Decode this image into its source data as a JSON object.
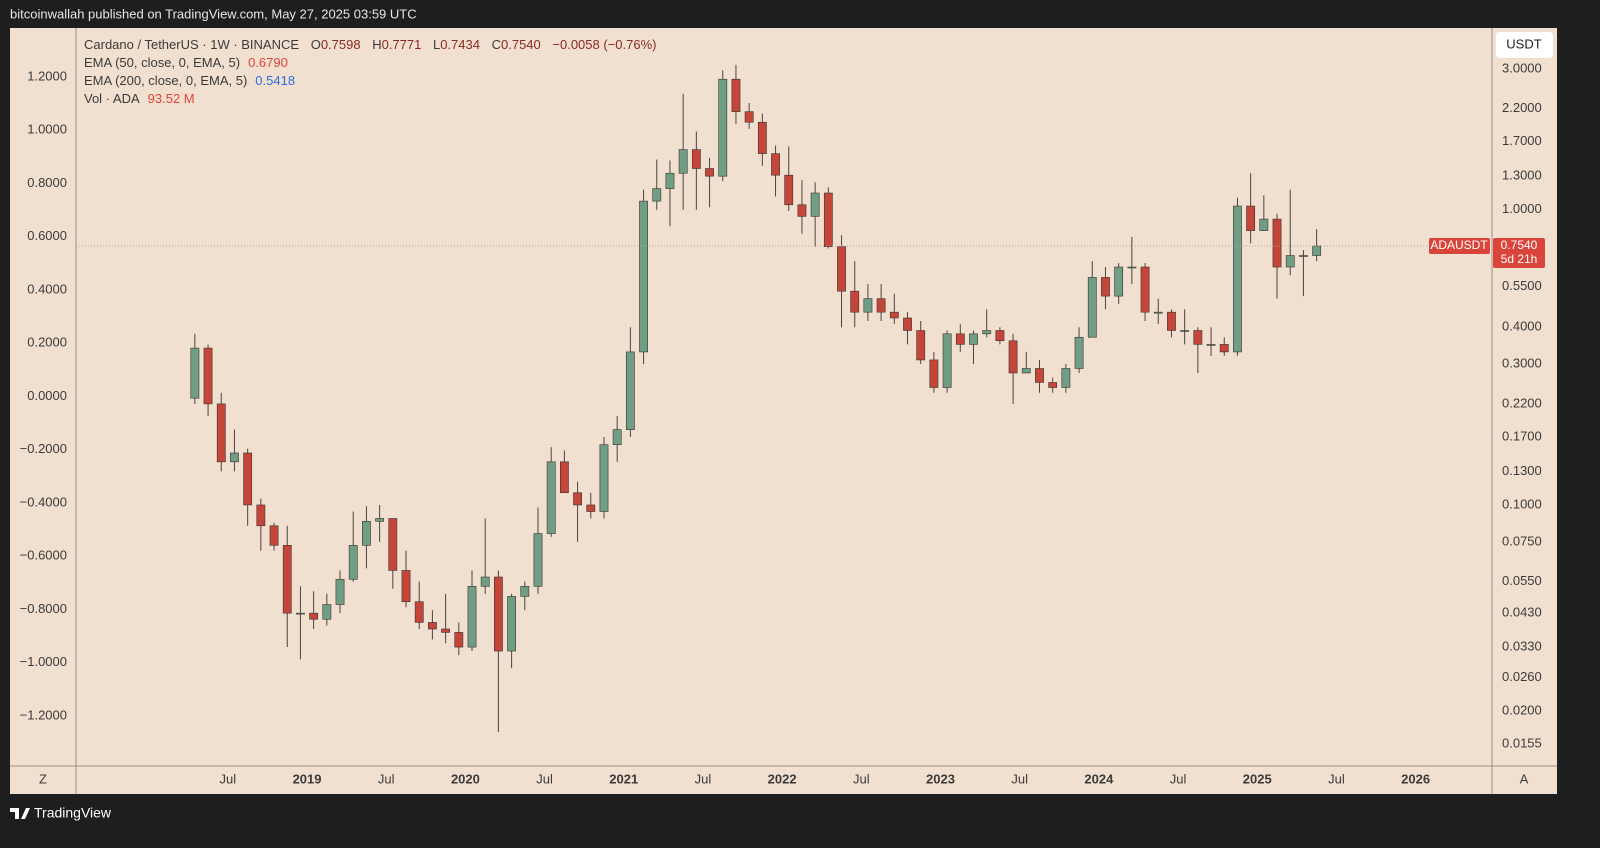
{
  "header": {
    "text": "bitcoinwallah published on TradingView.com, May 27, 2025 03:59 UTC"
  },
  "chart_data": {
    "type": "candlestick",
    "symbol": "Cardano / TetherUS · 1W · BINANCE",
    "ohlc_legend": {
      "open_label": "O",
      "open": "0.7598",
      "high_label": "H",
      "high": "0.7771",
      "low_label": "L",
      "low": "0.7434",
      "close_label": "C",
      "close": "0.7540",
      "change": "−0.0058 (−0.76%)"
    },
    "indicators": [
      {
        "name": "EMA (50, close, 0, EMA, 5)",
        "value": "0.6790",
        "color": "#e0443a"
      },
      {
        "name": "EMA (200, close, 0, EMA, 5)",
        "value": "0.5418",
        "color": "#2f6fe0"
      },
      {
        "name": "Vol · ADA",
        "value": "93.52 M",
        "color": "#e0443a"
      }
    ],
    "x": [
      "2018-04",
      "2018-05",
      "2018-06",
      "2018-07",
      "2018-08",
      "2018-09",
      "2018-10",
      "2018-11",
      "2018-12",
      "2019-01",
      "2019-02",
      "2019-03",
      "2019-04",
      "2019-05",
      "2019-06",
      "2019-07",
      "2019-08",
      "2019-09",
      "2019-10",
      "2019-11",
      "2019-12",
      "2020-01",
      "2020-02",
      "2020-03",
      "2020-04",
      "2020-05",
      "2020-06",
      "2020-07",
      "2020-08",
      "2020-09",
      "2020-10",
      "2020-11",
      "2020-12",
      "2021-01",
      "2021-02",
      "2021-03",
      "2021-04",
      "2021-05",
      "2021-06",
      "2021-07",
      "2021-08",
      "2021-09",
      "2021-10",
      "2021-11",
      "2021-12",
      "2022-01",
      "2022-02",
      "2022-03",
      "2022-04",
      "2022-05",
      "2022-06",
      "2022-07",
      "2022-08",
      "2022-09",
      "2022-10",
      "2022-11",
      "2022-12",
      "2023-01",
      "2023-02",
      "2023-03",
      "2023-04",
      "2023-05",
      "2023-06",
      "2023-07",
      "2023-08",
      "2023-09",
      "2023-10",
      "2023-11",
      "2023-12",
      "2024-01",
      "2024-02",
      "2024-03",
      "2024-04",
      "2024-05",
      "2024-06",
      "2024-07",
      "2024-08",
      "2024-09",
      "2024-10",
      "2024-11",
      "2024-12",
      "2025-01",
      "2025-02",
      "2025-03",
      "2025-04",
      "2025-05"
    ],
    "open": [
      0.23,
      0.34,
      0.22,
      0.14,
      0.15,
      0.1,
      0.085,
      0.073,
      0.043,
      0.043,
      0.041,
      0.046,
      0.056,
      0.073,
      0.088,
      0.09,
      0.06,
      0.047,
      0.04,
      0.038,
      0.037,
      0.033,
      0.053,
      0.057,
      0.032,
      0.049,
      0.053,
      0.08,
      0.14,
      0.11,
      0.1,
      0.095,
      0.16,
      0.18,
      0.33,
      1.07,
      1.18,
      1.33,
      1.6,
      1.38,
      1.3,
      2.77,
      2.15,
      1.98,
      1.55,
      1.31,
      1.04,
      0.95,
      1.14,
      0.75,
      0.53,
      0.45,
      0.5,
      0.45,
      0.43,
      0.39,
      0.31,
      0.25,
      0.38,
      0.35,
      0.38,
      0.39,
      0.36,
      0.28,
      0.29,
      0.26,
      0.25,
      0.29,
      0.37,
      0.59,
      0.51,
      0.64,
      0.64,
      0.45,
      0.45,
      0.39,
      0.39,
      0.35,
      0.35,
      0.33,
      1.03,
      0.85,
      0.93,
      0.64,
      0.7,
      0.7
    ],
    "high": [
      0.38,
      0.35,
      0.24,
      0.18,
      0.155,
      0.105,
      0.087,
      0.085,
      0.053,
      0.051,
      0.05,
      0.06,
      0.095,
      0.099,
      0.1,
      0.09,
      0.07,
      0.055,
      0.044,
      0.05,
      0.04,
      0.06,
      0.09,
      0.06,
      0.05,
      0.055,
      0.098,
      0.157,
      0.153,
      0.12,
      0.11,
      0.17,
      0.2,
      0.4,
      1.17,
      1.48,
      1.47,
      2.47,
      1.84,
      1.5,
      2.97,
      3.1,
      2.3,
      2.12,
      1.65,
      1.64,
      1.26,
      1.24,
      1.19,
      0.82,
      0.67,
      0.56,
      0.56,
      0.52,
      0.45,
      0.42,
      0.33,
      0.39,
      0.41,
      0.39,
      0.46,
      0.4,
      0.38,
      0.33,
      0.31,
      0.27,
      0.3,
      0.4,
      0.67,
      0.64,
      0.66,
      0.81,
      0.66,
      0.5,
      0.46,
      0.46,
      0.4,
      0.4,
      0.37,
      1.1,
      1.33,
      1.12,
      0.97,
      1.17,
      0.73,
      0.86
    ],
    "low": [
      0.22,
      0.2,
      0.13,
      0.13,
      0.085,
      0.07,
      0.07,
      0.033,
      0.03,
      0.038,
      0.039,
      0.043,
      0.055,
      0.061,
      0.075,
      0.052,
      0.045,
      0.038,
      0.035,
      0.034,
      0.031,
      0.032,
      0.05,
      0.017,
      0.028,
      0.044,
      0.05,
      0.078,
      0.11,
      0.075,
      0.09,
      0.09,
      0.14,
      0.17,
      0.3,
      1.0,
      0.88,
      1.0,
      1.0,
      1.02,
      1.25,
      1.95,
      1.88,
      1.41,
      1.11,
      0.99,
      0.83,
      0.75,
      0.74,
      0.4,
      0.4,
      0.42,
      0.42,
      0.41,
      0.35,
      0.3,
      0.24,
      0.24,
      0.33,
      0.3,
      0.37,
      0.35,
      0.22,
      0.28,
      0.24,
      0.24,
      0.24,
      0.28,
      0.37,
      0.46,
      0.48,
      0.56,
      0.42,
      0.41,
      0.37,
      0.35,
      0.28,
      0.32,
      0.32,
      0.32,
      0.77,
      0.86,
      0.5,
      0.6,
      0.51,
      0.67
    ],
    "close": [
      0.34,
      0.22,
      0.14,
      0.15,
      0.1,
      0.085,
      0.073,
      0.043,
      0.043,
      0.041,
      0.046,
      0.056,
      0.073,
      0.088,
      0.09,
      0.06,
      0.047,
      0.04,
      0.038,
      0.037,
      0.033,
      0.053,
      0.057,
      0.032,
      0.049,
      0.053,
      0.08,
      0.14,
      0.11,
      0.1,
      0.095,
      0.16,
      0.18,
      0.33,
      1.07,
      1.18,
      1.33,
      1.6,
      1.38,
      1.3,
      2.77,
      2.15,
      1.98,
      1.55,
      1.31,
      1.04,
      0.95,
      1.14,
      0.75,
      0.53,
      0.45,
      0.5,
      0.45,
      0.43,
      0.39,
      0.31,
      0.25,
      0.38,
      0.35,
      0.38,
      0.39,
      0.36,
      0.28,
      0.29,
      0.26,
      0.25,
      0.29,
      0.37,
      0.59,
      0.51,
      0.64,
      0.64,
      0.45,
      0.45,
      0.39,
      0.39,
      0.35,
      0.35,
      0.33,
      1.03,
      0.85,
      0.93,
      0.64,
      0.7,
      0.7,
      0.754
    ],
    "up_color": "#6f9e84",
    "down_color": "#c4463a",
    "log_scale": true,
    "grid": false,
    "currency": "USDT",
    "ylim": [
      0.01305,
      4.13
    ],
    "yticks": [
      {
        "value": 3,
        "label": "3.0000"
      },
      {
        "value": 2.2,
        "label": "2.2000"
      },
      {
        "value": 1.7,
        "label": "1.7000"
      },
      {
        "value": 1.3,
        "label": "1.3000"
      },
      {
        "value": 1,
        "label": "1.0000"
      },
      {
        "value": 0.55,
        "label": "0.5500"
      },
      {
        "value": 0.4,
        "label": "0.4000"
      },
      {
        "value": 0.3,
        "label": "0.3000"
      },
      {
        "value": 0.22,
        "label": "0.2200"
      },
      {
        "value": 0.17,
        "label": "0.1700"
      },
      {
        "value": 0.13,
        "label": "0.1300"
      },
      {
        "value": 0.1,
        "label": "0.1000"
      },
      {
        "value": 0.075,
        "label": "0.0750"
      },
      {
        "value": 0.055,
        "label": "0.0550"
      },
      {
        "value": 0.043,
        "label": "0.0430"
      },
      {
        "value": 0.033,
        "label": "0.0330"
      },
      {
        "value": 0.026,
        "label": "0.0260"
      },
      {
        "value": 0.02,
        "label": "0.0200"
      },
      {
        "value": 0.0155,
        "label": "0.0155"
      }
    ],
    "y2lim": [
      -1.388,
      1.384
    ],
    "y2ticks": [
      {
        "value": 1.2,
        "label": "1.2000"
      },
      {
        "value": 1,
        "label": "1.0000"
      },
      {
        "value": 0.8,
        "label": "0.8000"
      },
      {
        "value": 0.6,
        "label": "0.6000"
      },
      {
        "value": 0.4,
        "label": "0.4000"
      },
      {
        "value": 0.2,
        "label": "0.2000"
      },
      {
        "value": 0,
        "label": "0.0000"
      },
      {
        "value": -0.2,
        "label": "−0.2000"
      },
      {
        "value": -0.4,
        "label": "−0.4000"
      },
      {
        "value": -0.6,
        "label": "−0.6000"
      },
      {
        "value": -0.8,
        "label": "−0.8000"
      },
      {
        "value": -1,
        "label": "−1.0000"
      },
      {
        "value": -1.2,
        "label": "−1.2000"
      }
    ],
    "xlim": [
      "2017-07-16",
      "2026-06-25"
    ],
    "xticks": [
      {
        "value": "2018-07",
        "label": "Jul"
      },
      "2019",
      {
        "value": "2019-07",
        "label": "Jul"
      },
      "2020",
      {
        "value": "2020-07",
        "label": "Jul"
      },
      "2021",
      {
        "value": "2021-07",
        "label": "Jul"
      },
      "2022",
      {
        "value": "2022-07",
        "label": "Jul"
      },
      "2023",
      {
        "value": "2023-07",
        "label": "Jul"
      },
      "2024",
      {
        "value": "2024-07",
        "label": "Jul"
      },
      "2025",
      {
        "value": "2025-07",
        "label": "Jul"
      },
      "2026"
    ],
    "last_price": {
      "label": "ADAUSDT",
      "value": 0.754,
      "value_label": "0.7540",
      "countdown": "5d 21h",
      "color": "#d9453a"
    }
  },
  "footer": {
    "left_button": "Z",
    "right_button": "A",
    "brand": "TradingView"
  }
}
